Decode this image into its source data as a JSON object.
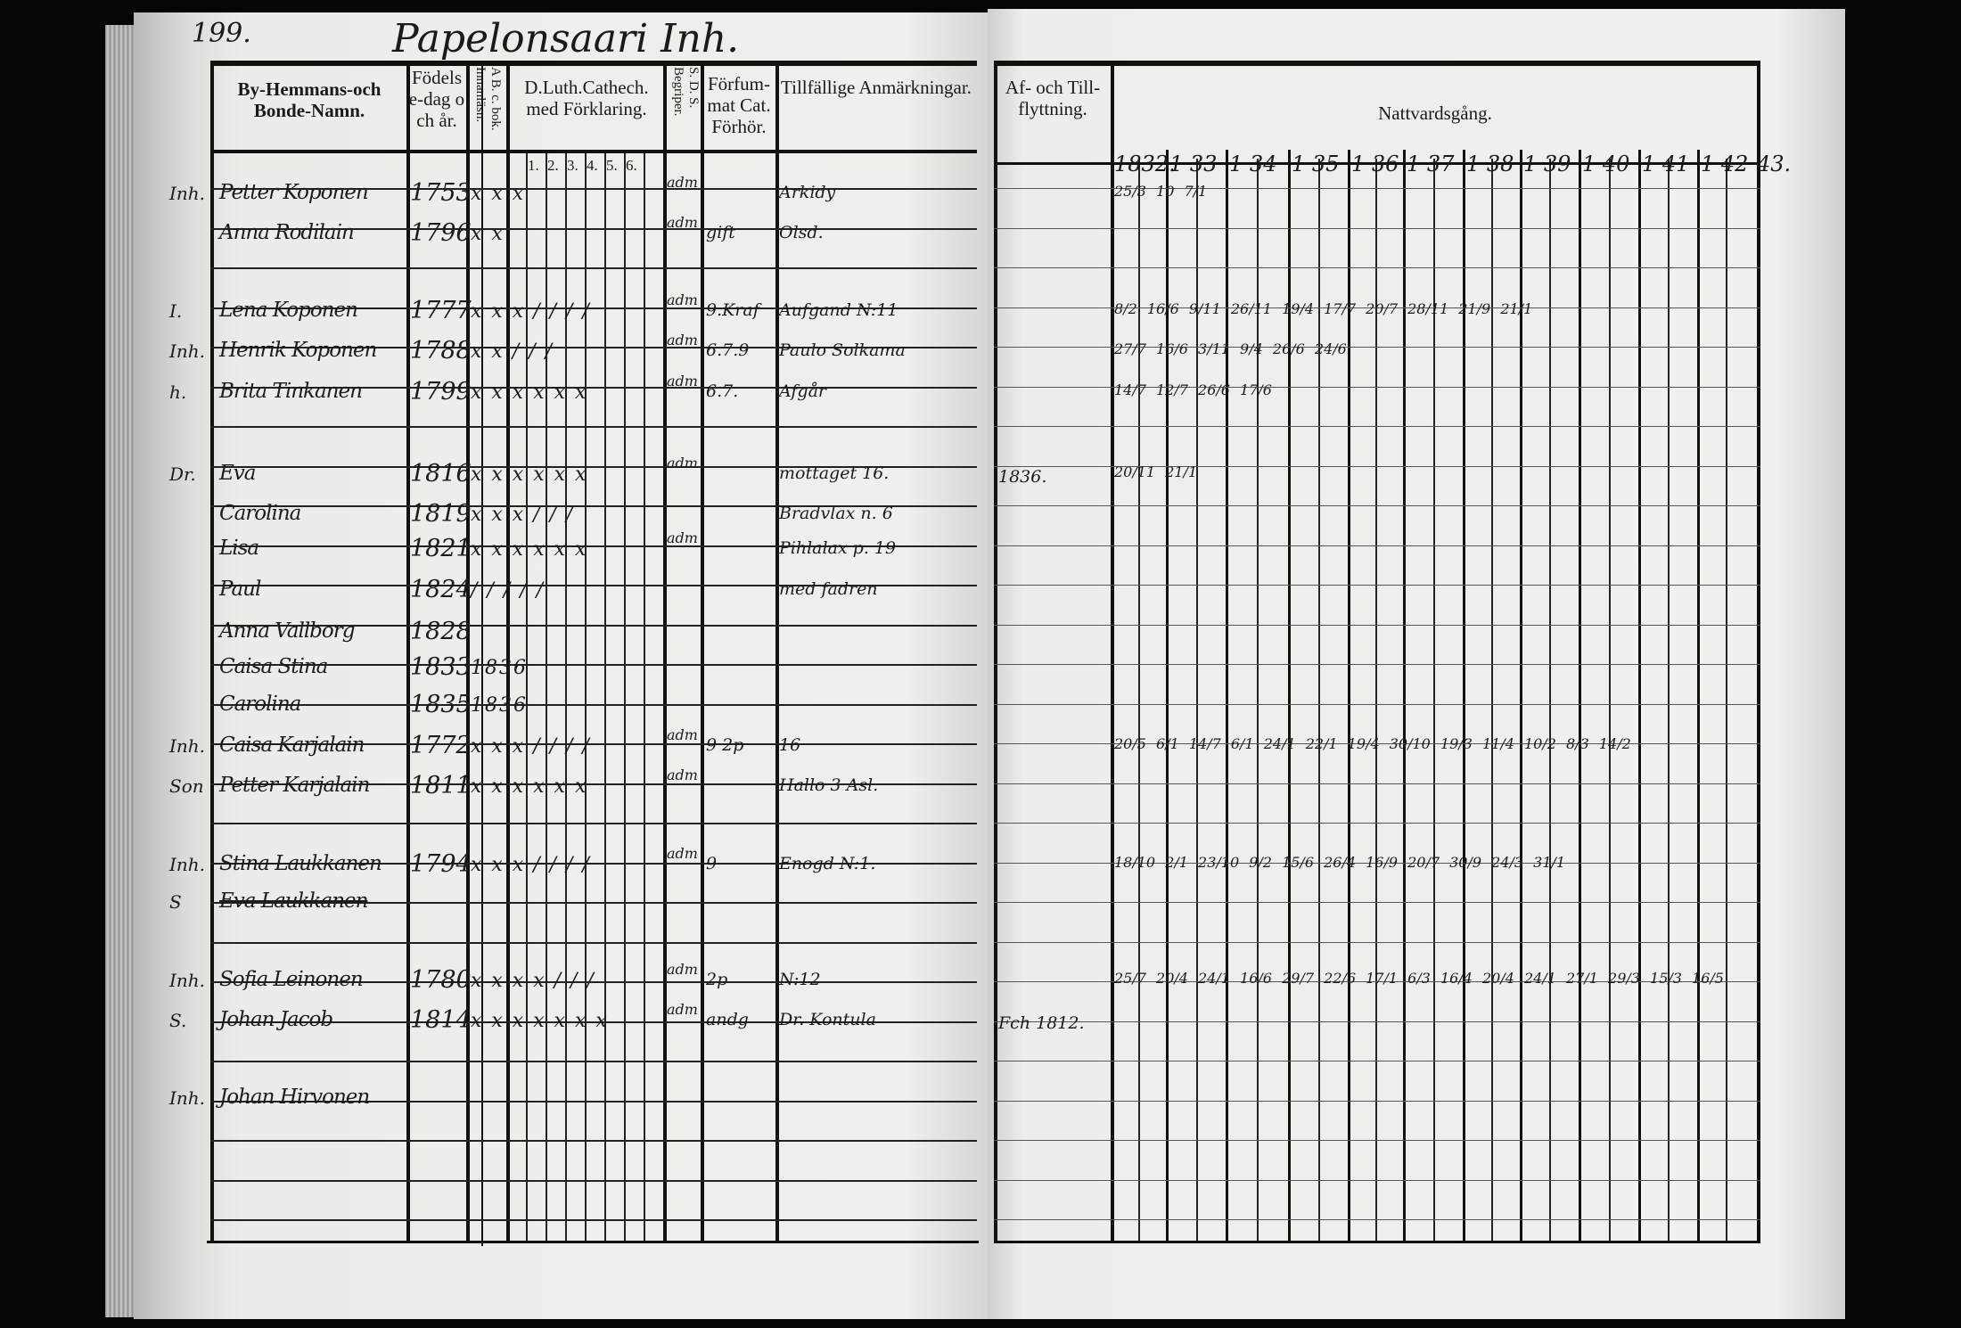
{
  "left_page": {
    "page_number": "199.",
    "title": "Papelonsaari Inh.",
    "headers": {
      "name": "By-Hemmans-och Bonde-Namn.",
      "birth": "Födelse-dag och år.",
      "abc": "A B. c. bok. Innanläsn.",
      "catechism": "D.Luth.Cathech. med Förklaring.",
      "catechism_subcols": [
        "1.",
        "2.",
        "3.",
        "4.",
        "5.",
        "6."
      ],
      "sds": "S. D. S. Begriper.",
      "missed": "Förfum-mat Cat. Förhör.",
      "remarks": "Tillfällige Anmärkningar."
    },
    "entries": [
      {
        "prefix": "Inh.",
        "name": "Petter Koponen",
        "birth": "1753",
        "marks": "x x x",
        "sds": "adm",
        "missed": "",
        "remarks": "Arkidy"
      },
      {
        "prefix": "",
        "name": "Anna Rodilain",
        "birth": "1796",
        "marks": "x x",
        "sds": "adm",
        "missed": "gift",
        "remarks": "Olsd."
      },
      {
        "prefix": "I.",
        "name": "Lena Koponen",
        "birth": "1777",
        "marks": "x x x / / / /",
        "sds": "adm",
        "missed": "9.Kraf",
        "remarks": "Aufgand N:11"
      },
      {
        "prefix": "Inh.",
        "name": "Henrik Koponen",
        "birth": "1788",
        "marks": "x x / / /",
        "sds": "adm",
        "missed": "6.7.9",
        "remarks": "Paulo Solkama"
      },
      {
        "prefix": "h.",
        "name": "Brita Tinkanen",
        "birth": "1799",
        "marks": "x x x x x x",
        "sds": "adm",
        "missed": "6.7.",
        "remarks": "Afgår"
      },
      {
        "prefix": "Dr.",
        "name": "Eva",
        "birth": "1816",
        "marks": "x x x x x x",
        "sds": "adm",
        "missed": "",
        "remarks": "mottaget 16."
      },
      {
        "prefix": "",
        "name": "Carolina",
        "birth": "1819",
        "marks": "x x x / / /",
        "sds": "",
        "missed": "",
        "remarks": "Bradvlax n. 6"
      },
      {
        "prefix": "",
        "name": "Lisa",
        "birth": "1821",
        "marks": "x x x x x x",
        "sds": "adm",
        "missed": "",
        "remarks": "Pihlalax p. 19"
      },
      {
        "prefix": "",
        "name": "Paul",
        "birth": "1824",
        "marks": "/ / / / /",
        "sds": "",
        "missed": "",
        "remarks": "med fadren"
      },
      {
        "prefix": "",
        "name": "Anna Vallborg",
        "birth": "1828",
        "marks": "",
        "sds": "",
        "missed": "",
        "remarks": ""
      },
      {
        "prefix": "",
        "name": "Caisa Stina",
        "birth": "1833",
        "marks": "1836",
        "sds": "",
        "missed": "",
        "remarks": ""
      },
      {
        "prefix": "",
        "name": "Carolina",
        "birth": "1835",
        "marks": "1836",
        "sds": "",
        "missed": "",
        "remarks": ""
      },
      {
        "prefix": "Inh.",
        "name": "Caisa Karjalain",
        "birth": "1772",
        "marks": "x x x / / / /",
        "sds": "adm",
        "missed": "9  2p",
        "remarks": "16"
      },
      {
        "prefix": "Son",
        "name": "Petter Karjalain",
        "birth": "1811",
        "marks": "x x x x x x",
        "sds": "adm",
        "missed": "",
        "remarks": "Hallo 3 Asl."
      },
      {
        "prefix": "Inh.",
        "name": "Stina Laukkanen",
        "birth": "1794",
        "marks": "x x x / / / /",
        "sds": "adm",
        "missed": "9",
        "remarks": "Enogd N:1."
      },
      {
        "prefix": "S",
        "name": "Eva Laukkanen",
        "birth": "",
        "marks": "",
        "sds": "",
        "missed": "",
        "remarks": ""
      },
      {
        "prefix": "Inh.",
        "name": "Sofia Leinonen",
        "birth": "1780",
        "marks": "x x x x / / /",
        "sds": "adm",
        "missed": "2p",
        "remarks": "N:12"
      },
      {
        "prefix": "S.",
        "name": "Johan Jacob",
        "birth": "1814",
        "marks": "x x x x x x x",
        "sds": "adm",
        "missed": "andg",
        "remarks": "Dr. Kontula"
      },
      {
        "prefix": "Inh.",
        "name": "Johan Hirvonen",
        "birth": "",
        "marks": "",
        "sds": "",
        "missed": "",
        "remarks": ""
      }
    ]
  },
  "right_page": {
    "headers": {
      "moves": "Af- och Till-flyttning.",
      "communion": "Nattvardsgång."
    },
    "years": [
      "1832.",
      "1 33",
      "1 34",
      "1 35",
      "1 36",
      "1 37",
      "1 38",
      "1 39",
      "1 40",
      "1 41",
      "1 42",
      "43."
    ],
    "moves": [
      {
        "row": 5,
        "text": "1836."
      },
      {
        "row": 17,
        "text": "Fch 1812."
      }
    ],
    "communion_marks": [
      {
        "row": 0,
        "text": "25/3 10   7/1"
      },
      {
        "row": 2,
        "text": "8/2  16/6  9/11  26/11  19/4  17/7  20/7  28/11  21/9  21/1"
      },
      {
        "row": 3,
        "text": "27/7  16/6  3/11  9/4  26/6  24/6"
      },
      {
        "row": 4,
        "text": "14/7  12/7  26/6  17/6"
      },
      {
        "row": 5,
        "text": "20/11  21/1"
      },
      {
        "row": 12,
        "text": "20/5  6/1  14/7  6/1  24/1  22/1  19/4  30/10  19/3  11/4  10/2  8/3  14/2"
      },
      {
        "row": 14,
        "text": "18/10  2/1  23/10  9/2  15/6  26/4  16/9  20/7  30/9  24/3  31/1"
      },
      {
        "row": 16,
        "text": "25/7  20/4  24/1  16/6  29/7  22/6  17/1  6/3  16/4  20/4  24/1  27/1  29/3  15/3  16/5"
      }
    ]
  }
}
